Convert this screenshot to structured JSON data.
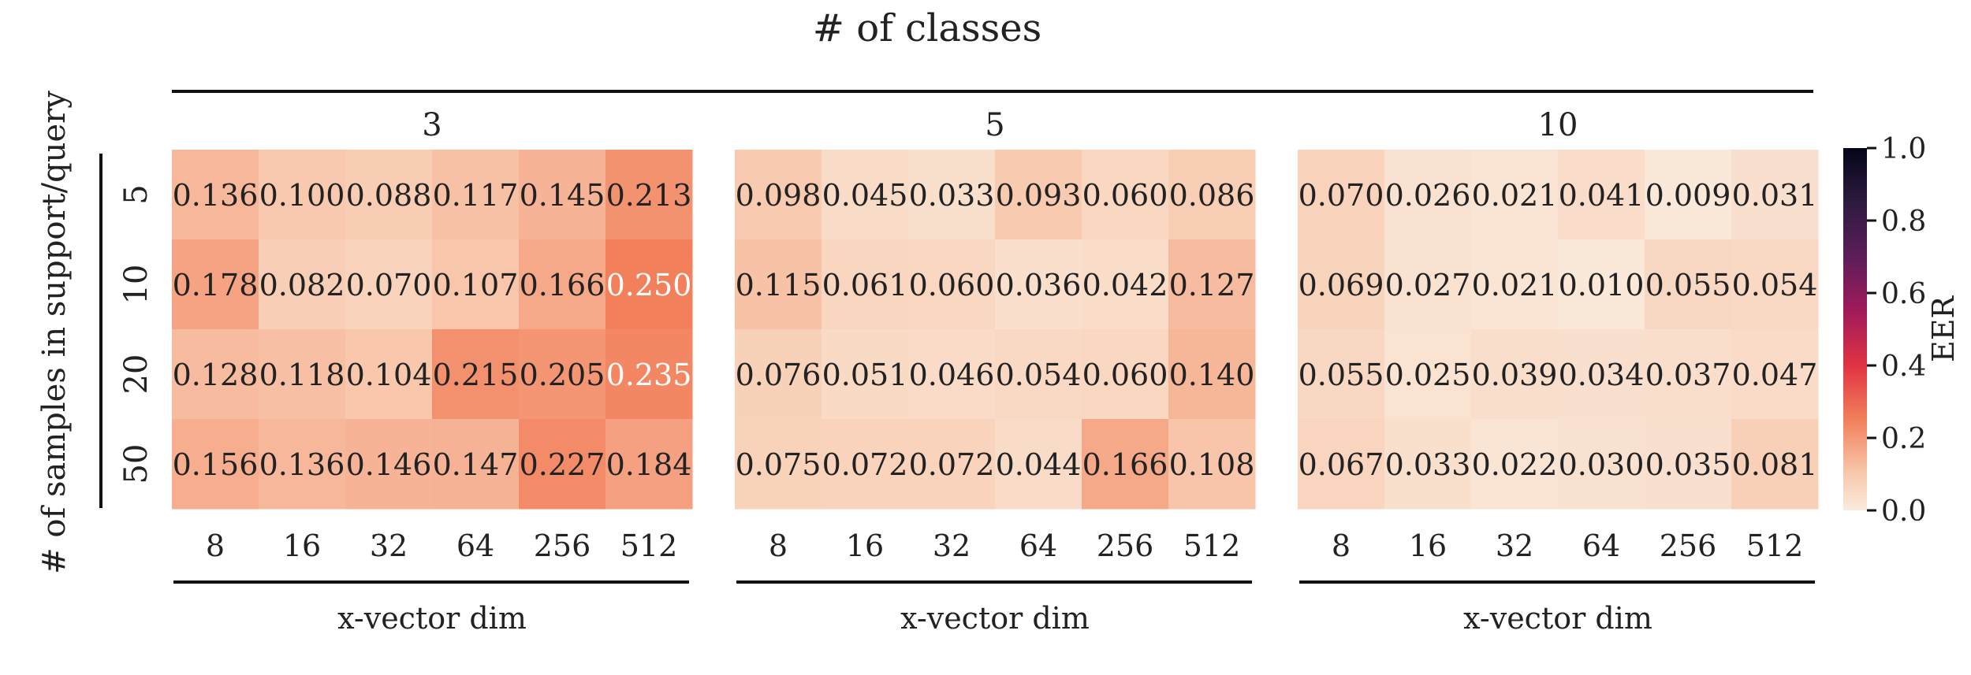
{
  "chart_data": {
    "type": "heatmap",
    "title": "# of classes",
    "ylabel": "# of samples in support/query",
    "row_labels": [
      "5",
      "10",
      "20",
      "50"
    ],
    "col_labels": [
      "8",
      "16",
      "32",
      "64",
      "256",
      "512"
    ],
    "panels": [
      {
        "title": "3",
        "xlabel": "x-vector dim",
        "values": [
          [
            "0.136",
            "0.100",
            "0.088",
            "0.117",
            "0.145",
            "0.213"
          ],
          [
            "0.178",
            "0.082",
            "0.070",
            "0.107",
            "0.166",
            "0.250"
          ],
          [
            "0.128",
            "0.118",
            "0.104",
            "0.215",
            "0.205",
            "0.235"
          ],
          [
            "0.156",
            "0.136",
            "0.146",
            "0.147",
            "0.227",
            "0.184"
          ]
        ]
      },
      {
        "title": "5",
        "xlabel": "x-vector dim",
        "values": [
          [
            "0.098",
            "0.045",
            "0.033",
            "0.093",
            "0.060",
            "0.086"
          ],
          [
            "0.115",
            "0.061",
            "0.060",
            "0.036",
            "0.042",
            "0.127"
          ],
          [
            "0.076",
            "0.051",
            "0.046",
            "0.054",
            "0.060",
            "0.140"
          ],
          [
            "0.075",
            "0.072",
            "0.072",
            "0.044",
            "0.166",
            "0.108"
          ]
        ]
      },
      {
        "title": "10",
        "xlabel": "x-vector dim",
        "values": [
          [
            "0.070",
            "0.026",
            "0.021",
            "0.041",
            "0.009",
            "0.031"
          ],
          [
            "0.069",
            "0.027",
            "0.021",
            "0.010",
            "0.055",
            "0.054"
          ],
          [
            "0.055",
            "0.025",
            "0.039",
            "0.034",
            "0.037",
            "0.047"
          ],
          [
            "0.067",
            "0.033",
            "0.022",
            "0.030",
            "0.035",
            "0.081"
          ]
        ]
      }
    ],
    "colorbar": {
      "label": "EER",
      "range": [
        0.0,
        1.0
      ],
      "ticks": [
        "0.0",
        "0.2",
        "0.4",
        "0.6",
        "0.8",
        "1.0"
      ]
    }
  }
}
